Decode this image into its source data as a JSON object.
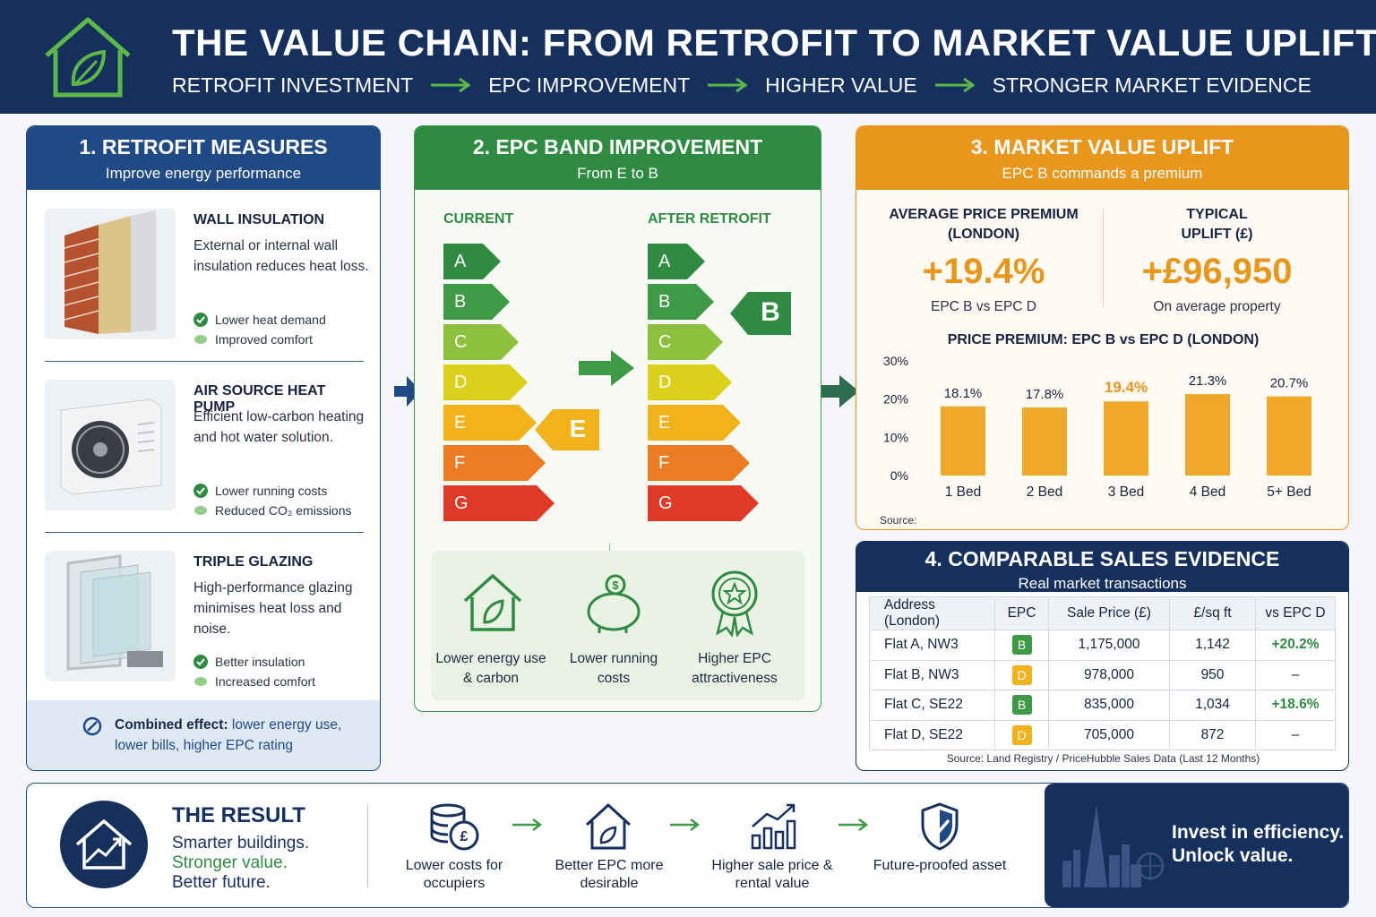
{
  "header": {
    "title": "THE VALUE CHAIN: FROM RETROFIT TO MARKET VALUE UPLIFT",
    "flow": [
      "RETROFIT INVESTMENT",
      "EPC IMPROVEMENT",
      "HIGHER VALUE",
      "STRONGER MARKET EVIDENCE"
    ],
    "icon": "house-leaf-icon"
  },
  "retrofit": {
    "title": "1. RETROFIT MEASURES",
    "subtitle": "Improve energy performance",
    "measures": [
      {
        "name": "WALL INSULATION",
        "desc": "External or internal wall insulation reduces heat loss.",
        "b1": "Lower heat demand",
        "b2": "Improved comfort"
      },
      {
        "name": "AIR SOURCE HEAT PUMP",
        "desc": "Efficient low-carbon heating and hot water solution.",
        "b1": "Lower running costs",
        "b2": "Reduced CO₂ emissions"
      },
      {
        "name": "TRIPLE GLAZING",
        "desc": "High-performance glazing minimises heat loss and noise.",
        "b1": "Better insulation",
        "b2": "Increased comfort"
      }
    ],
    "combined_label": "Combined effect:",
    "combined_text": "lower energy use, lower bills, higher EPC rating"
  },
  "epc": {
    "title": "2. EPC BAND IMPROVEMENT",
    "subtitle": "From E to B",
    "current_label": "CURRENT",
    "after_label": "AFTER RETROFIT",
    "bands": [
      "A",
      "B",
      "C",
      "D",
      "E",
      "F",
      "G"
    ],
    "band_colors": [
      "#2e8b41",
      "#3e9a44",
      "#8dc03c",
      "#dcd11a",
      "#f2b21b",
      "#ec7b22",
      "#e03a27"
    ],
    "current_rating": "E",
    "after_rating": "B",
    "benefits": [
      {
        "label": "Lower energy use & carbon",
        "icon": "house-leaf-icon"
      },
      {
        "label": "Lower running costs",
        "icon": "piggy-bank-icon"
      },
      {
        "label": "Higher EPC attractiveness",
        "icon": "award-rosette-icon"
      }
    ]
  },
  "market": {
    "title": "3. MARKET VALUE UPLIFT",
    "subtitle": "EPC B commands a premium",
    "kpi1_label": "AVERAGE PRICE PREMIUM (LONDON)",
    "kpi1_value": "+19.4%",
    "kpi1_note": "EPC B vs EPC D",
    "kpi2_label": "TYPICAL UPLIFT (£)",
    "kpi2_value": "+£96,950",
    "kpi2_note": "On average property",
    "source_label": "Source:",
    "accent": "#e8961c"
  },
  "chart_data": {
    "type": "bar",
    "title": "PRICE PREMIUM: EPC B vs EPC D (LONDON)",
    "categories": [
      "1 Bed",
      "2 Bed",
      "3 Bed",
      "4 Bed",
      "5+ Bed"
    ],
    "values": [
      18.1,
      17.8,
      19.4,
      21.3,
      20.7
    ],
    "data_labels": [
      "18.1%",
      "17.8%",
      "19.4%",
      "21.3%",
      "20.7%"
    ],
    "highlight_index": 2,
    "yticks": [
      "0%",
      "10%",
      "20%",
      "30%"
    ],
    "ylim": [
      0,
      30
    ],
    "grid": false,
    "bar_color": "#f0a82a"
  },
  "sales": {
    "title": "4. COMPARABLE SALES EVIDENCE",
    "subtitle": "Real market transactions",
    "headers": [
      "Address (London)",
      "EPC",
      "Sale Price (£)",
      "£/sq ft",
      "vs EPC D"
    ],
    "rows": [
      {
        "address": "Flat A, NW3",
        "epc": "B",
        "price": "1,175,000",
        "sqft": "1,142",
        "vs": "+20.2%"
      },
      {
        "address": "Flat B, NW3",
        "epc": "D",
        "price": "978,000",
        "sqft": "950",
        "vs": "–"
      },
      {
        "address": "Flat C, SE22",
        "epc": "B",
        "price": "835,000",
        "sqft": "1,034",
        "vs": "+18.6%"
      },
      {
        "address": "Flat D, SE22",
        "epc": "D",
        "price": "705,000",
        "sqft": "872",
        "vs": "–"
      }
    ],
    "source": "Source: Land Registry / PriceHubble Sales Data (Last 12 Months)"
  },
  "result": {
    "title": "THE RESULT",
    "line1": "Smarter buildings.",
    "line2": "Stronger value.",
    "line3": "Better future.",
    "items": [
      {
        "label": "Lower costs for occupiers",
        "icon": "coins-icon"
      },
      {
        "label": "Better EPC more desirable",
        "icon": "house-leaf-icon"
      },
      {
        "label": "Higher sale price & rental value",
        "icon": "bar-growth-icon"
      },
      {
        "label": "Future-proofed asset",
        "icon": "shield-check-icon"
      }
    ],
    "cta_line1": "Invest in efficiency.",
    "cta_line2": "Unlock value."
  }
}
